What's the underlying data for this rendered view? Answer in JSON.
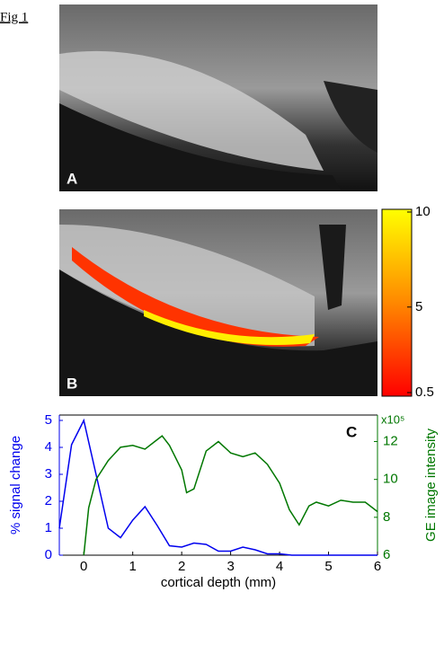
{
  "figure_label": "Fig 1",
  "panels": {
    "a": "A",
    "b": "B",
    "c": "C"
  },
  "colorbar": {
    "lim": [
      0.5,
      10
    ],
    "ticks": [
      0.5,
      5,
      10
    ]
  },
  "chart_data": {
    "type": "line",
    "xlabel": "cortical depth (mm)",
    "ylabel": "% signal change",
    "y2label": "GE image intensity",
    "y2_multiplier": "x10⁵",
    "xlim": [
      -0.5,
      6
    ],
    "xticks": [
      0,
      1,
      2,
      3,
      4,
      5,
      6
    ],
    "ylim": [
      0,
      5.2
    ],
    "yticks": [
      0,
      1,
      2,
      3,
      4,
      5
    ],
    "y2lim": [
      6,
      13.4
    ],
    "y2ticks": [
      6,
      8,
      10,
      12
    ],
    "series": [
      {
        "color": "#0000ee",
        "axis": "y",
        "x": [
          -0.5,
          -0.25,
          0,
          0.25,
          0.5,
          0.75,
          1,
          1.25,
          1.5,
          1.75,
          2,
          2.25,
          2.5,
          2.75,
          3,
          3.25,
          3.5,
          3.75,
          4,
          4.25,
          4.5,
          5,
          5.5,
          6
        ],
        "values": [
          1,
          4.1,
          5,
          3,
          1.0,
          0.65,
          1.3,
          1.8,
          1.1,
          0.35,
          0.3,
          0.45,
          0.4,
          0.15,
          0.15,
          0.3,
          0.2,
          0.05,
          0.05,
          0,
          0,
          0,
          0,
          0
        ]
      },
      {
        "color": "#007700",
        "axis": "y2",
        "x": [
          0,
          0.1,
          0.25,
          0.5,
          0.75,
          1,
          1.25,
          1.5,
          1.6,
          1.75,
          2,
          2.1,
          2.25,
          2.5,
          2.75,
          3,
          3.25,
          3.5,
          3.75,
          4,
          4.2,
          4.4,
          4.6,
          4.75,
          5,
          5.25,
          5.5,
          5.75,
          6
        ],
        "values": [
          6,
          8.5,
          10,
          11,
          11.7,
          11.8,
          11.6,
          12.1,
          12.3,
          11.8,
          10.5,
          9.3,
          9.5,
          11.5,
          12.0,
          11.4,
          11.2,
          11.4,
          10.8,
          9.8,
          8.4,
          7.6,
          8.6,
          8.8,
          8.6,
          8.9,
          8.8,
          8.8,
          8.3
        ]
      }
    ]
  }
}
